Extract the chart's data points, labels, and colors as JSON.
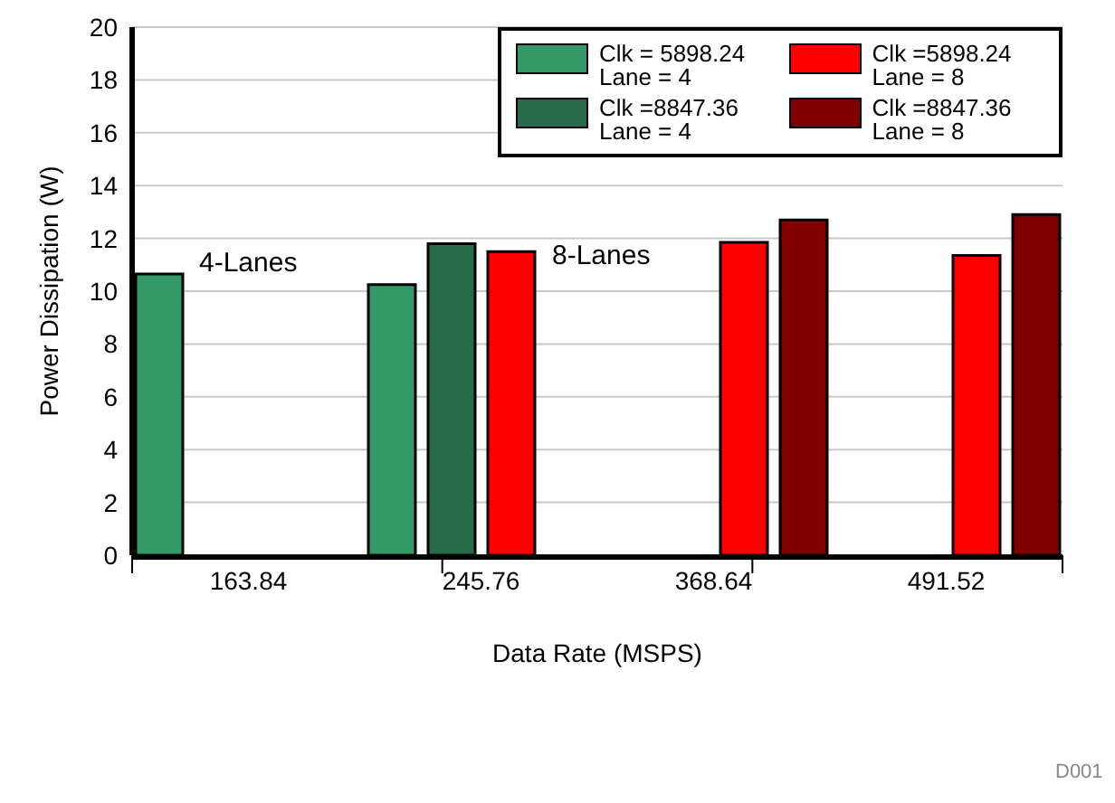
{
  "chart_data": {
    "type": "bar",
    "xlabel": "Data Rate (MSPS)",
    "ylabel": "Power Dissipation (W)",
    "categories": [
      "163.84",
      "245.76",
      "368.64",
      "491.52"
    ],
    "series": [
      {
        "name": "Clk = 5898.24\nLane = 4",
        "color": "#339966",
        "values": [
          10.65,
          10.25,
          null,
          null
        ]
      },
      {
        "name": "Clk =8847.36\nLane = 4",
        "color": "#286b4a",
        "values": [
          null,
          11.8,
          null,
          null
        ]
      },
      {
        "name": "Clk =5898.24\nLane = 8",
        "color": "#ff0000",
        "values": [
          null,
          11.5,
          11.85,
          11.35
        ]
      },
      {
        "name": "Clk =8847.36\nLane = 8",
        "color": "#800000",
        "values": [
          null,
          null,
          12.7,
          12.9
        ]
      }
    ],
    "ylim": [
      0,
      20
    ],
    "yticks": [
      0,
      2,
      4,
      6,
      8,
      10,
      12,
      14,
      16,
      18,
      20
    ],
    "grid": "y",
    "legend": "top right",
    "annotations": [
      "4-Lanes",
      "8-Lanes",
      "D001"
    ]
  }
}
